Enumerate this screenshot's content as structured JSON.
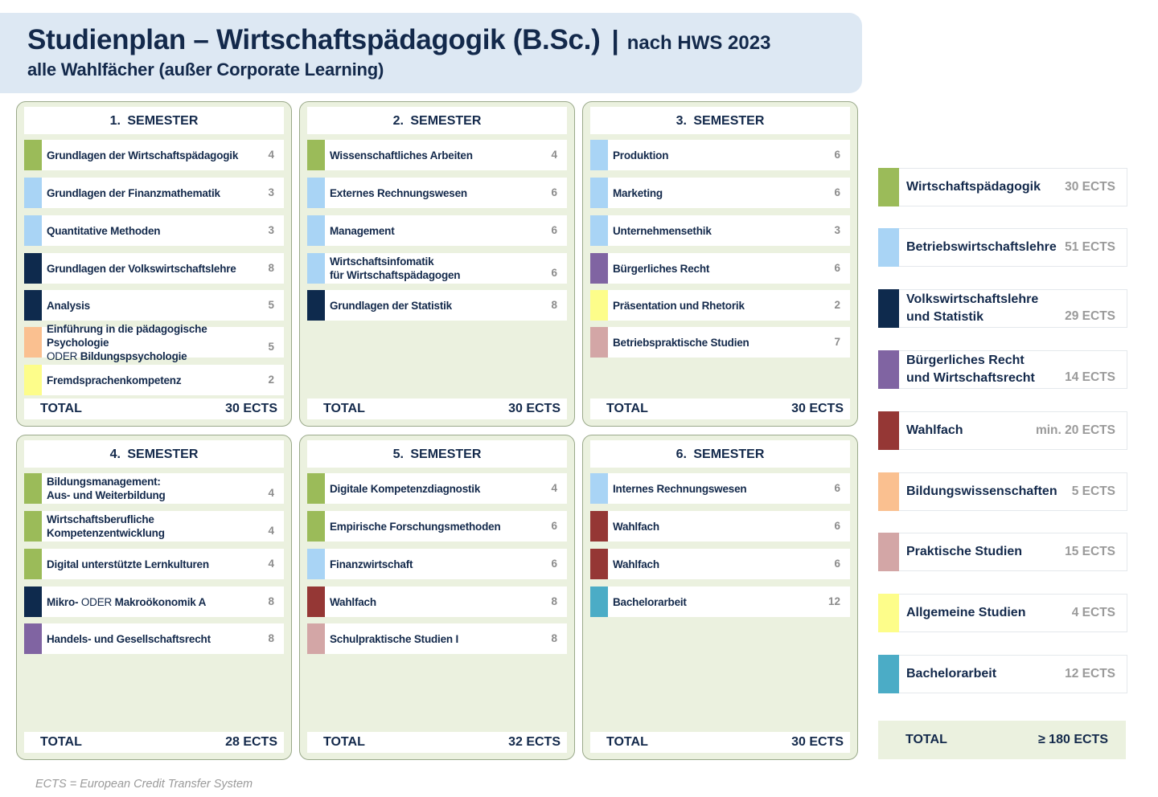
{
  "header": {
    "title": "Studienplan – Wirtschaftspädagogik (B.Sc.)",
    "separator": "|",
    "title_suffix": "nach HWS 2023",
    "subtitle": "alle Wahlfächer (außer Corporate Learning)"
  },
  "colors": {
    "wirtschaftspaedagogik": "#9bbb59",
    "bwl": "#a9d4f5",
    "vwl": "#0e2a4d",
    "recht": "#8064a2",
    "wahlfach": "#953735",
    "bildung": "#fac090",
    "praktisch": "#d3a6a6",
    "allgemein": "#fdfd8a",
    "bachelor": "#4bacc6"
  },
  "semesters": [
    {
      "heading": "1.  SEMESTER",
      "courses": [
        {
          "name": "Grundlagen der Wirtschaftspädagogik",
          "ects": "4",
          "category": "wirtschaftspaedagogik"
        },
        {
          "name": "Grundlagen der Finanzmathematik",
          "ects": "3",
          "category": "bwl"
        },
        {
          "name": "Quantitative Methoden",
          "ects": "3",
          "category": "bwl"
        },
        {
          "name": "Grundlagen der Volkswirtschaftslehre",
          "ects": "8",
          "category": "vwl"
        },
        {
          "name": "Analysis",
          "ects": "5",
          "category": "vwl"
        },
        {
          "name": "Einführung in die pädagogische Psychologie",
          "name_oder": "ODER",
          "name_line2": "Bildungspsychologie",
          "ects": "5",
          "category": "bildung"
        },
        {
          "name": "Fremdsprachenkompetenz",
          "ects": "2",
          "category": "allgemein"
        }
      ],
      "total_label": "TOTAL",
      "total": "30 ECTS"
    },
    {
      "heading": "2.  SEMESTER",
      "courses": [
        {
          "name": "Wissenschaftliches Arbeiten",
          "ects": "4",
          "category": "wirtschaftspaedagogik"
        },
        {
          "name": "Externes Rechnungswesen",
          "ects": "6",
          "category": "bwl"
        },
        {
          "name": "Management",
          "ects": "6",
          "category": "bwl"
        },
        {
          "name": "Wirtschaftsinfomatik",
          "name_line2": "für Wirtschaftspädagogen",
          "ects": "6",
          "category": "bwl"
        },
        {
          "name": "Grundlagen der Statistik",
          "ects": "8",
          "category": "vwl"
        }
      ],
      "total_label": "TOTAL",
      "total": "30 ECTS"
    },
    {
      "heading": "3.  SEMESTER",
      "courses": [
        {
          "name": "Produktion",
          "ects": "6",
          "category": "bwl"
        },
        {
          "name": "Marketing",
          "ects": "6",
          "category": "bwl"
        },
        {
          "name": "Unternehmensethik",
          "ects": "3",
          "category": "bwl"
        },
        {
          "name": "Bürgerliches Recht",
          "ects": "6",
          "category": "recht"
        },
        {
          "name": "Präsentation und Rhetorik",
          "ects": "2",
          "category": "allgemein"
        },
        {
          "name": "Betriebspraktische Studien",
          "ects": "7",
          "category": "praktisch"
        }
      ],
      "total_label": "TOTAL",
      "total": "30 ECTS"
    },
    {
      "heading": "4.  SEMESTER",
      "courses": [
        {
          "name": "Bildungsmanagement:",
          "name_line2": "Aus- und Weiterbildung",
          "ects": "4",
          "category": "wirtschaftspaedagogik"
        },
        {
          "name": "Wirtschaftsberufliche",
          "name_line2": "Kompetenzentwicklung",
          "ects": "4",
          "category": "wirtschaftspaedagogik"
        },
        {
          "name": "Digital unterstützte Lernkulturen",
          "ects": "4",
          "category": "wirtschaftspaedagogik"
        },
        {
          "name": " Mikro-",
          "name_oder": "ODER",
          "name_tail": "Makroökonomik A",
          "ects": "8",
          "category": "vwl"
        },
        {
          "name": "Handels- und Gesellschaftsrecht",
          "ects": "8",
          "category": "recht"
        }
      ],
      "total_label": "TOTAL",
      "total": "28 ECTS"
    },
    {
      "heading": "5.  SEMESTER",
      "courses": [
        {
          "name": "Digitale Kompetenzdiagnostik",
          "ects": "4",
          "category": "wirtschaftspaedagogik"
        },
        {
          "name": "Empirische Forschungsmethoden",
          "ects": "6",
          "category": "wirtschaftspaedagogik"
        },
        {
          "name": "Finanzwirtschaft",
          "ects": "6",
          "category": "bwl"
        },
        {
          "name": "Wahlfach",
          "ects": "8",
          "category": "wahlfach"
        },
        {
          "name": "Schulpraktische Studien I",
          "ects": "8",
          "category": "praktisch"
        }
      ],
      "total_label": "TOTAL",
      "total": "32 ECTS"
    },
    {
      "heading": "6.  SEMESTER",
      "courses": [
        {
          "name": "Internes Rechnungswesen",
          "ects": "6",
          "category": "bwl"
        },
        {
          "name": "Wahlfach",
          "ects": "6",
          "category": "wahlfach"
        },
        {
          "name": "Wahlfach",
          "ects": "6",
          "category": "wahlfach"
        },
        {
          "name": "Bachelorarbeit",
          "ects": "12",
          "category": "bachelor"
        }
      ],
      "total_label": "TOTAL",
      "total": "30 ECTS"
    }
  ],
  "legend": [
    {
      "name": "Wirtschaftspädagogik",
      "ects": "30 ECTS",
      "category": "wirtschaftspaedagogik"
    },
    {
      "name": "Betriebswirtschaftslehre",
      "ects": "51 ECTS",
      "category": "bwl"
    },
    {
      "name": "Volkswirtschaftslehre",
      "name_line2": "und Statistik",
      "ects": "29 ECTS",
      "category": "vwl"
    },
    {
      "name": "Bürgerliches Recht",
      "name_line2": "und Wirtschaftsrecht",
      "ects": "14 ECTS",
      "category": "recht"
    },
    {
      "name": "Wahlfach",
      "ects": "min. 20 ECTS",
      "category": "wahlfach"
    },
    {
      "name": "Bildungswissenschaften",
      "ects": "5 ECTS",
      "category": "bildung"
    },
    {
      "name": "Praktische Studien",
      "ects": "15 ECTS",
      "category": "praktisch"
    },
    {
      "name": "Allgemeine Studien",
      "ects": "4 ECTS",
      "category": "allgemein"
    },
    {
      "name": "Bachelorarbeit",
      "ects": "12 ECTS",
      "category": "bachelor"
    }
  ],
  "legend_total": {
    "label": "TOTAL",
    "value": "≥ 180 ECTS"
  },
  "footnote": "ECTS = European Credit Transfer System"
}
